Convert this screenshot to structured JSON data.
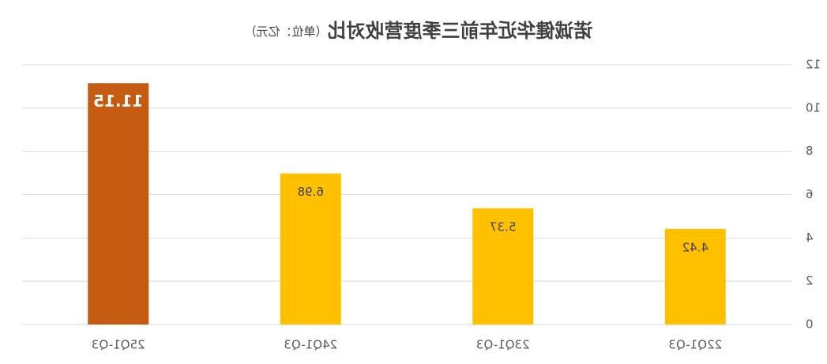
{
  "chart_data": {
    "type": "bar",
    "title": "诺诚健华近年前三季度营收对比",
    "subtitle": "（单位：亿元）",
    "categories": [
      "22Q1-Q3",
      "23Q1-Q3",
      "24Q1-Q3",
      "25Q1-Q3"
    ],
    "values": [
      4.42,
      5.37,
      6.98,
      11.15
    ],
    "colors": [
      "#ffc000",
      "#ffc000",
      "#ffc000",
      "#c55a11"
    ],
    "ylim": [
      0,
      12
    ],
    "yticks": [
      0,
      2,
      4,
      6,
      8,
      10,
      12
    ],
    "grid": true
  }
}
